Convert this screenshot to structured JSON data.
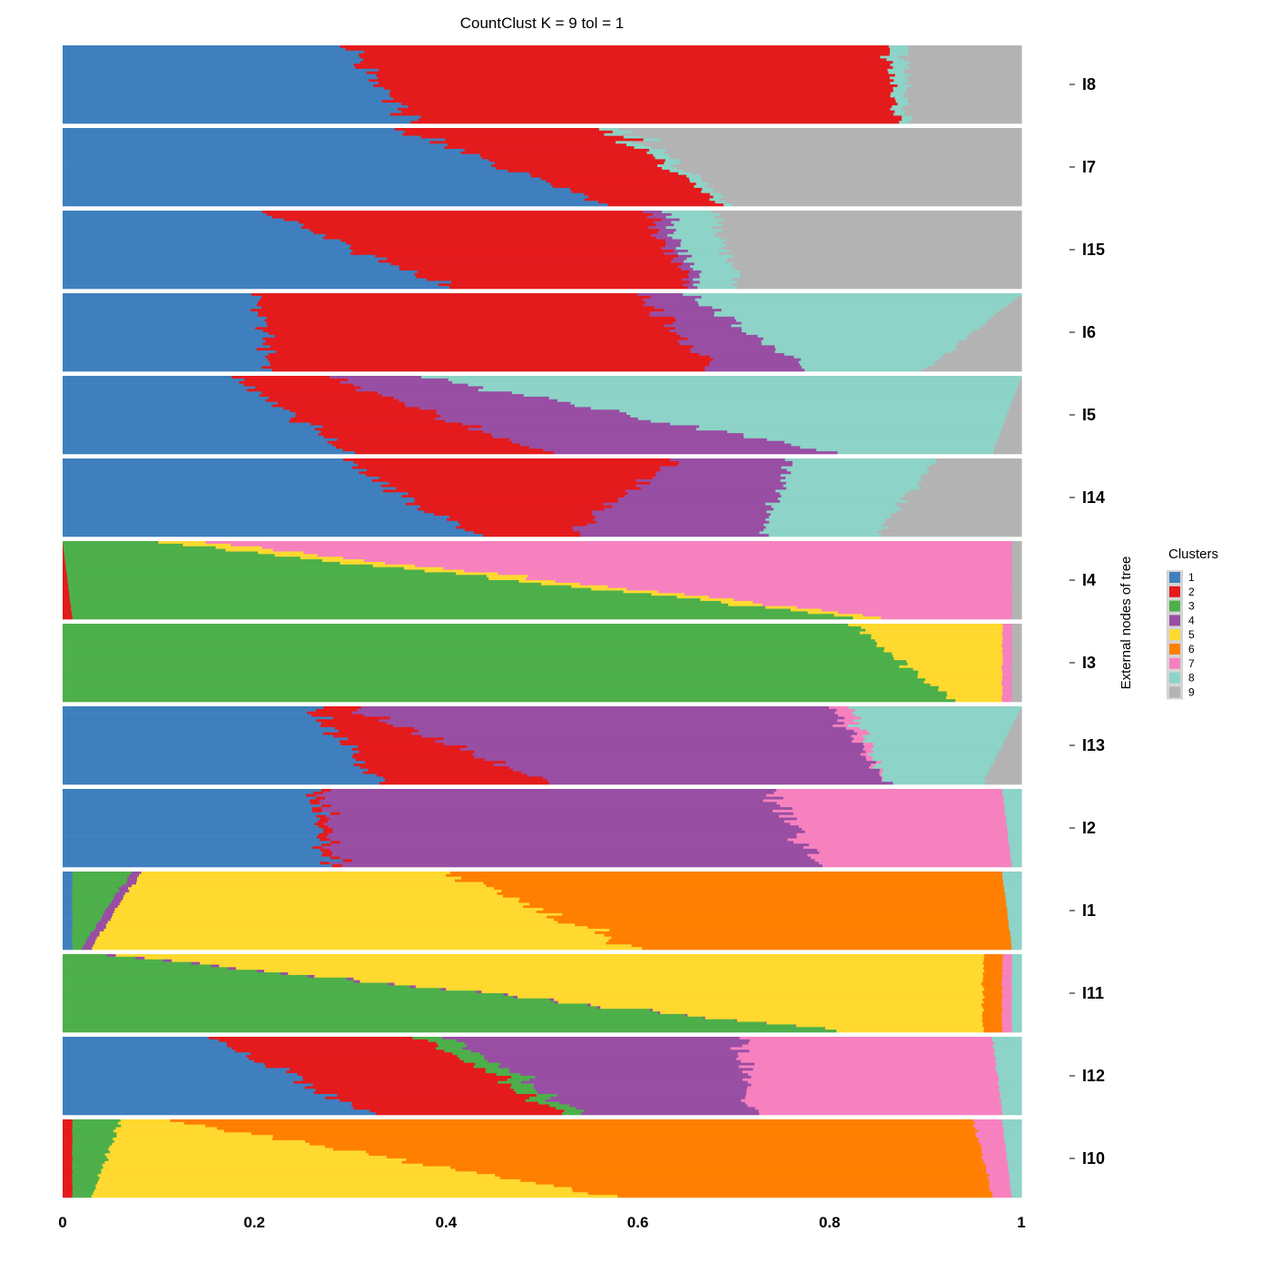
{
  "chart_data": {
    "type": "bar",
    "orientation": "horizontal-stacked",
    "title": "CountClust K =  9 tol =  1",
    "xlim": [
      0,
      1
    ],
    "x_ticks": [
      0,
      0.2,
      0.4,
      0.6,
      0.8,
      1
    ],
    "x_tick_labels": [
      "0",
      "0.2",
      "0.4",
      "0.6",
      "0.8",
      "1"
    ],
    "ylabel": "External nodes of tree",
    "legend": {
      "title": "Clusters",
      "placement": "right",
      "entries": [
        {
          "label": "1",
          "color": "#3F7FBE"
        },
        {
          "label": "2",
          "color": "#E41A1C"
        },
        {
          "label": "3",
          "color": "#4DAF4A"
        },
        {
          "label": "4",
          "color": "#984EA3"
        },
        {
          "label": "5",
          "color": "#FFD92F"
        },
        {
          "label": "6",
          "color": "#FF7F00"
        },
        {
          "label": "7",
          "color": "#F781BF"
        },
        {
          "label": "8",
          "color": "#8DD3C7"
        },
        {
          "label": "9",
          "color": "#B3B3B3"
        }
      ]
    },
    "groups": [
      {
        "label": "I8",
        "cluster_order": [
          1,
          2,
          8,
          9
        ],
        "first_row": [
          0.3,
          0.56,
          0.02,
          0.12
        ],
        "last_row": [
          0.37,
          0.5,
          0.01,
          0.12
        ]
      },
      {
        "label": "I7",
        "cluster_order": [
          1,
          2,
          8,
          9
        ],
        "first_row": [
          0.35,
          0.22,
          0.02,
          0.41
        ],
        "last_row": [
          0.57,
          0.12,
          0.01,
          0.3
        ]
      },
      {
        "label": "I15",
        "cluster_order": [
          1,
          2,
          4,
          8,
          9
        ],
        "first_row": [
          0.21,
          0.4,
          0.02,
          0.05,
          0.32
        ],
        "last_row": [
          0.4,
          0.25,
          0.01,
          0.04,
          0.3
        ]
      },
      {
        "label": "I6",
        "cluster_order": [
          1,
          2,
          4,
          8,
          9
        ],
        "first_row": [
          0.2,
          0.4,
          0.05,
          0.35,
          0.0
        ],
        "last_row": [
          0.22,
          0.46,
          0.1,
          0.12,
          0.1
        ]
      },
      {
        "label": "I5",
        "cluster_order": [
          1,
          2,
          4,
          8,
          9
        ],
        "first_row": [
          0.18,
          0.1,
          0.1,
          0.62,
          0.0
        ],
        "last_row": [
          0.3,
          0.2,
          0.3,
          0.17,
          0.03
        ]
      },
      {
        "label": "I14",
        "cluster_order": [
          1,
          2,
          4,
          8,
          9
        ],
        "first_row": [
          0.29,
          0.35,
          0.12,
          0.15,
          0.09
        ],
        "last_row": [
          0.43,
          0.1,
          0.2,
          0.12,
          0.15
        ]
      },
      {
        "label": "I4",
        "cluster_order": [
          2,
          3,
          5,
          7,
          9
        ],
        "first_row": [
          0.0,
          0.1,
          0.05,
          0.84,
          0.01
        ],
        "last_row": [
          0.01,
          0.82,
          0.03,
          0.13,
          0.01
        ]
      },
      {
        "label": "I3",
        "cluster_order": [
          2,
          3,
          5,
          7,
          9
        ],
        "first_row": [
          0.0,
          0.82,
          0.16,
          0.01,
          0.01
        ],
        "last_row": [
          0.0,
          0.93,
          0.05,
          0.01,
          0.01
        ]
      },
      {
        "label": "I13",
        "cluster_order": [
          1,
          2,
          4,
          7,
          8,
          9
        ],
        "first_row": [
          0.26,
          0.04,
          0.5,
          0.02,
          0.18,
          0.0
        ],
        "last_row": [
          0.33,
          0.18,
          0.35,
          0.0,
          0.1,
          0.04
        ]
      },
      {
        "label": "I2",
        "cluster_order": [
          1,
          2,
          4,
          7,
          8
        ],
        "first_row": [
          0.26,
          0.01,
          0.47,
          0.24,
          0.02
        ],
        "last_row": [
          0.28,
          0.01,
          0.5,
          0.2,
          0.01
        ]
      },
      {
        "label": "I1",
        "cluster_order": [
          1,
          3,
          4,
          5,
          6,
          8
        ],
        "first_row": [
          0.01,
          0.06,
          0.01,
          0.32,
          0.58,
          0.02
        ],
        "last_row": [
          0.01,
          0.01,
          0.01,
          0.57,
          0.39,
          0.01
        ]
      },
      {
        "label": "I11",
        "cluster_order": [
          2,
          3,
          4,
          5,
          6,
          7,
          8
        ],
        "first_row": [
          0.0,
          0.05,
          0.01,
          0.9,
          0.02,
          0.01,
          0.01
        ],
        "last_row": [
          0.0,
          0.81,
          0.0,
          0.15,
          0.02,
          0.01,
          0.01
        ]
      },
      {
        "label": "I12",
        "cluster_order": [
          1,
          2,
          3,
          4,
          7,
          8
        ],
        "first_row": [
          0.16,
          0.22,
          0.03,
          0.3,
          0.26,
          0.03
        ],
        "last_row": [
          0.32,
          0.2,
          0.02,
          0.18,
          0.26,
          0.02
        ]
      },
      {
        "label": "I10",
        "cluster_order": [
          2,
          3,
          5,
          6,
          7,
          8
        ],
        "first_row": [
          0.01,
          0.05,
          0.05,
          0.84,
          0.03,
          0.02
        ],
        "last_row": [
          0.01,
          0.02,
          0.55,
          0.39,
          0.02,
          0.01
        ]
      }
    ]
  }
}
